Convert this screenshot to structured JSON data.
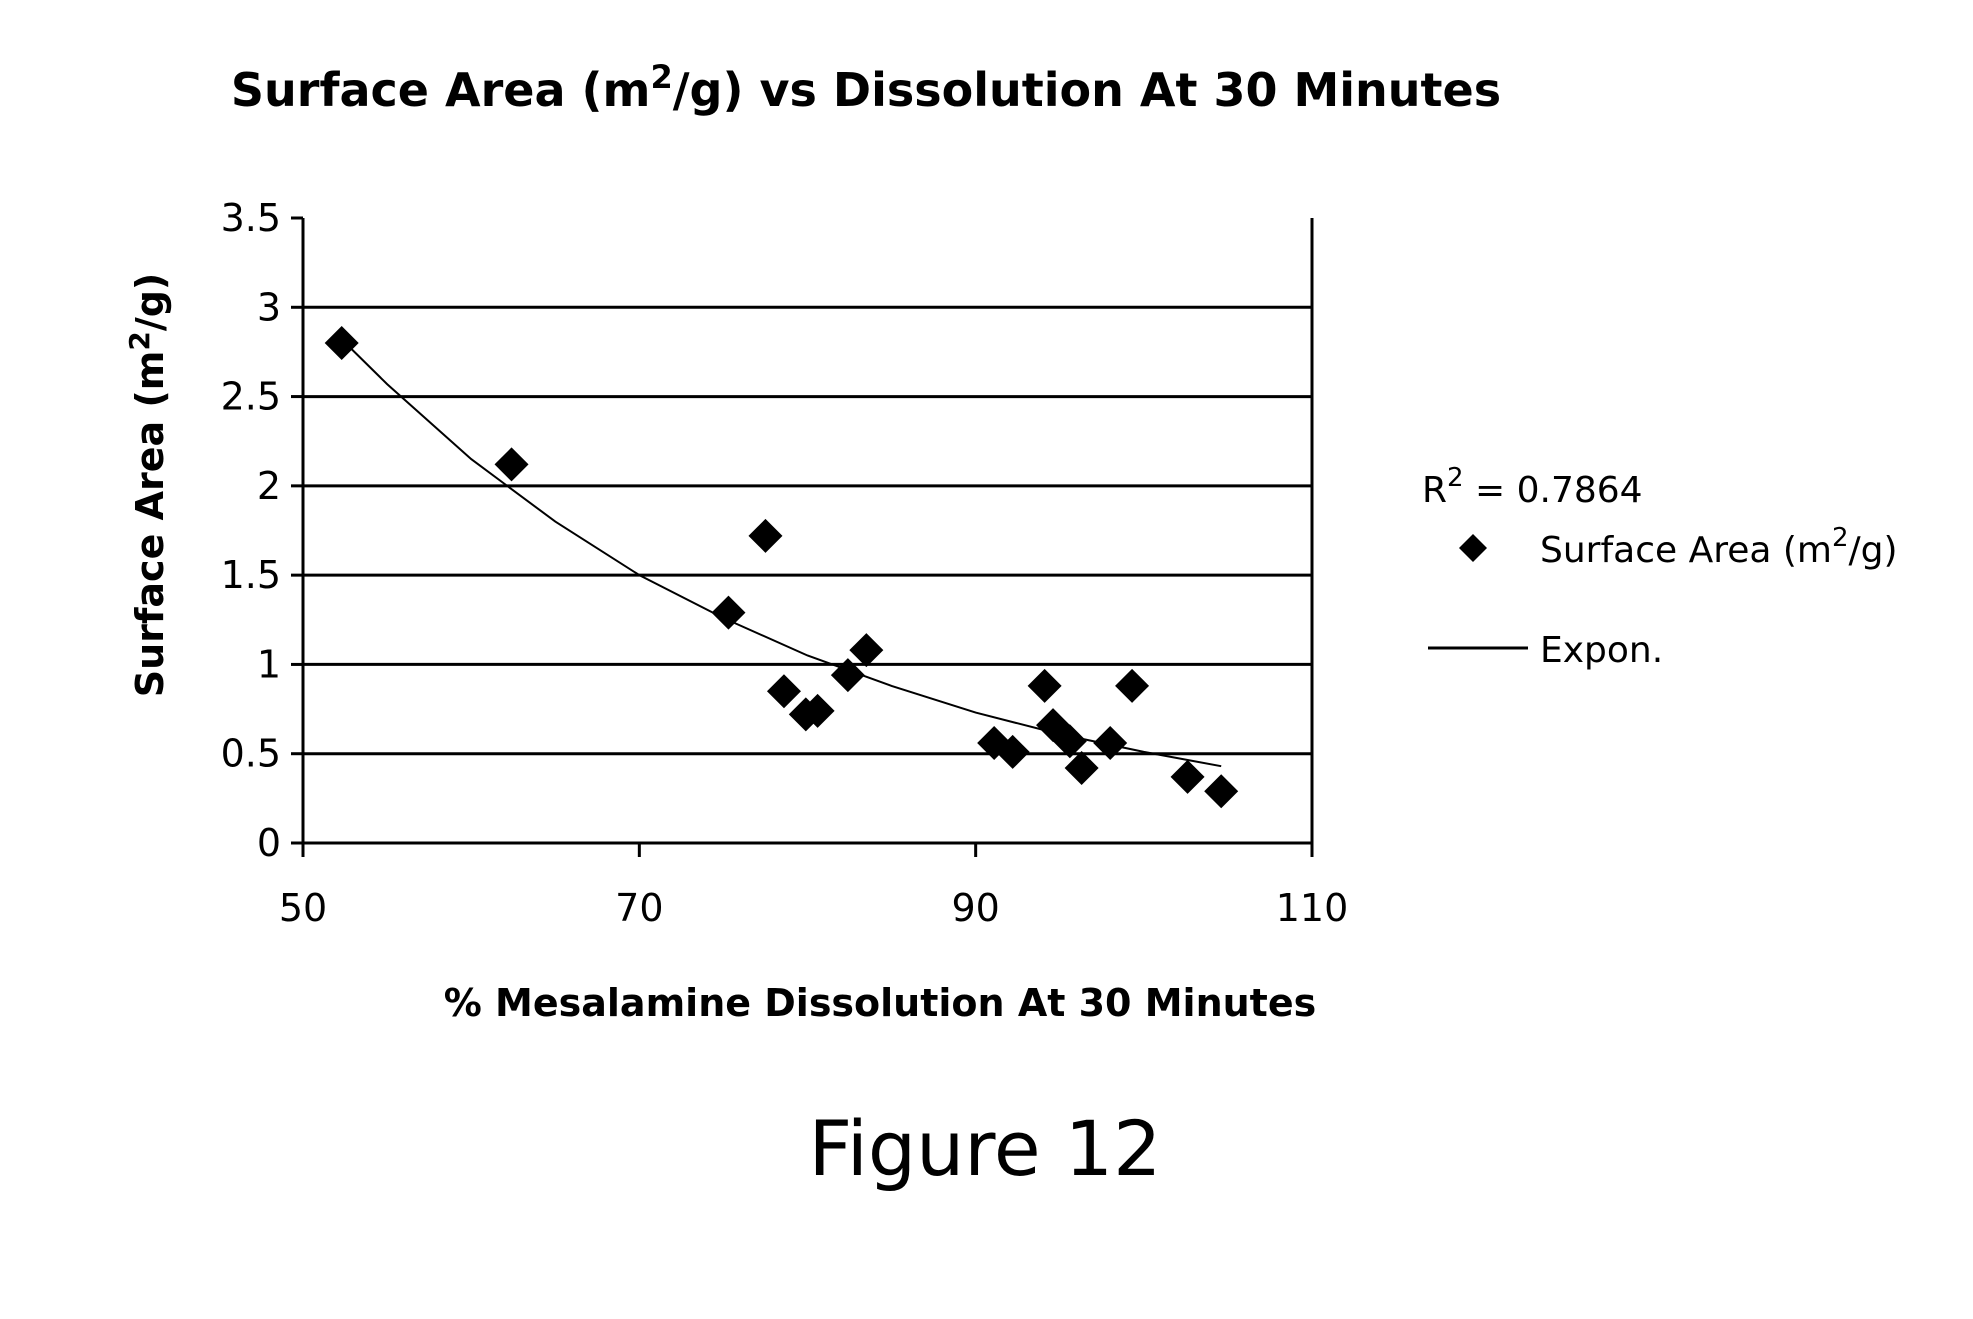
{
  "chart_data": {
    "type": "scatter",
    "title": {
      "main": "Surface Area (m",
      "sup": "2",
      "rest": "/g) vs Dissolution At 30 Minutes"
    },
    "xlabel": "% Mesalamine Dissolution At 30 Minutes",
    "ylabel": {
      "main": "Surface Area (m",
      "sup": "2",
      "rest": "/g)"
    },
    "xlim": [
      50,
      110
    ],
    "ylim": [
      0,
      3.5
    ],
    "xticks": [
      50,
      70,
      90,
      110
    ],
    "yticks": [
      0,
      0.5,
      1,
      1.5,
      2,
      2.5,
      3,
      3.5
    ],
    "grid": "horizontal",
    "legend_position": "right",
    "series": [
      {
        "name": {
          "main": "Surface Area (m",
          "sup": "2",
          "rest": "/g)"
        },
        "marker": "diamond",
        "color": "#000000",
        "points": [
          {
            "x": 52.3,
            "y": 2.8
          },
          {
            "x": 62.4,
            "y": 2.12
          },
          {
            "x": 75.3,
            "y": 1.29
          },
          {
            "x": 77.5,
            "y": 1.72
          },
          {
            "x": 78.6,
            "y": 0.85
          },
          {
            "x": 79.9,
            "y": 0.72
          },
          {
            "x": 80.6,
            "y": 0.74
          },
          {
            "x": 82.4,
            "y": 0.94
          },
          {
            "x": 83.5,
            "y": 1.08
          },
          {
            "x": 91.1,
            "y": 0.56
          },
          {
            "x": 92.2,
            "y": 0.51
          },
          {
            "x": 94.1,
            "y": 0.88
          },
          {
            "x": 94.6,
            "y": 0.66
          },
          {
            "x": 95.6,
            "y": 0.57
          },
          {
            "x": 96.3,
            "y": 0.42
          },
          {
            "x": 98.0,
            "y": 0.56
          },
          {
            "x": 99.3,
            "y": 0.88
          },
          {
            "x": 102.6,
            "y": 0.37
          },
          {
            "x": 104.6,
            "y": 0.29
          }
        ]
      },
      {
        "name": "Expon.",
        "type": "line",
        "color": "#000000",
        "points": [
          {
            "x": 52.3,
            "y": 2.82
          },
          {
            "x": 55,
            "y": 2.57
          },
          {
            "x": 60,
            "y": 2.15
          },
          {
            "x": 65,
            "y": 1.8
          },
          {
            "x": 70,
            "y": 1.5
          },
          {
            "x": 75,
            "y": 1.26
          },
          {
            "x": 80,
            "y": 1.05
          },
          {
            "x": 85,
            "y": 0.88
          },
          {
            "x": 90,
            "y": 0.73
          },
          {
            "x": 95,
            "y": 0.61
          },
          {
            "x": 100,
            "y": 0.51
          },
          {
            "x": 104.6,
            "y": 0.43
          }
        ]
      }
    ],
    "annotations": {
      "r2_prefix": "R",
      "r2_sup": "2",
      "r2_value": " = 0.7864"
    }
  },
  "figure_caption": "Figure 12"
}
